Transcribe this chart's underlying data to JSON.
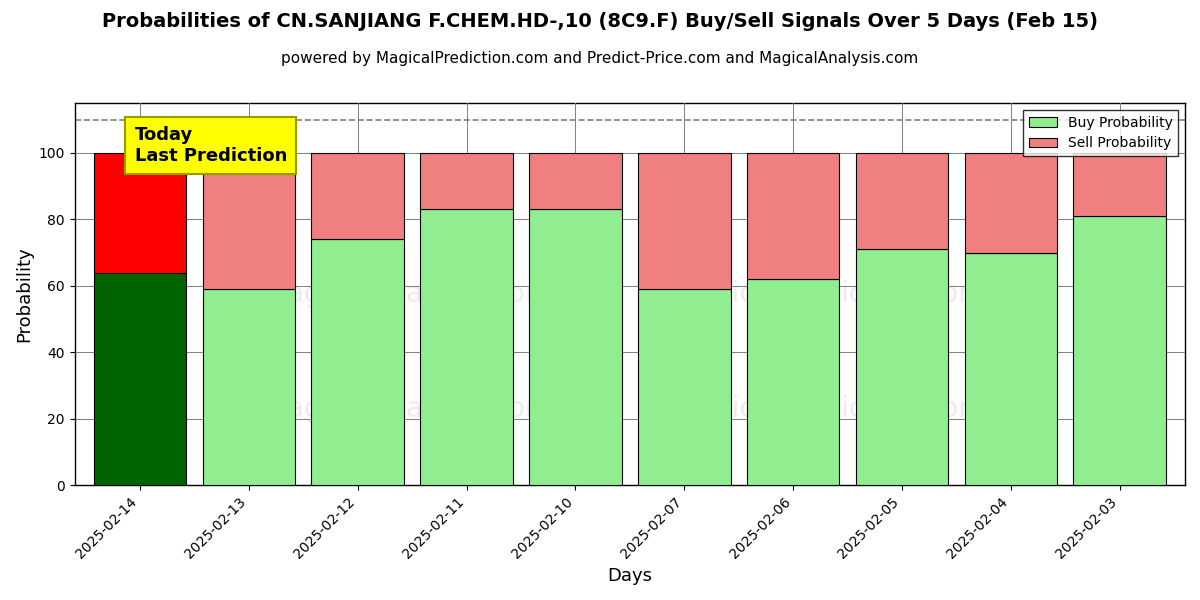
{
  "title": "Probabilities of CN.SANJIANG F.CHEM.HD-,10 (8C9.F) Buy/Sell Signals Over 5 Days (Feb 15)",
  "subtitle": "powered by MagicalPrediction.com and Predict-Price.com and MagicalAnalysis.com",
  "xlabel": "Days",
  "ylabel": "Probability",
  "categories": [
    "2025-02-14",
    "2025-02-13",
    "2025-02-12",
    "2025-02-11",
    "2025-02-10",
    "2025-02-07",
    "2025-02-06",
    "2025-02-05",
    "2025-02-04",
    "2025-02-03"
  ],
  "buy_values": [
    64,
    59,
    74,
    83,
    83,
    59,
    62,
    71,
    70,
    81
  ],
  "sell_values": [
    36,
    41,
    26,
    17,
    17,
    41,
    38,
    29,
    30,
    19
  ],
  "today_buy_color": "#006400",
  "today_sell_color": "#FF0000",
  "buy_color": "#90EE90",
  "sell_color": "#F08080",
  "today_annotation": "Today\nLast Prediction",
  "ylim_max": 115,
  "dashed_line_y": 110,
  "yticks": [
    0,
    20,
    40,
    60,
    80,
    100
  ],
  "legend_buy_label": "Buy Probability",
  "legend_sell_label": "Sell Probability",
  "background_color": "#ffffff",
  "title_fontsize": 14,
  "subtitle_fontsize": 11,
  "axis_label_fontsize": 13,
  "tick_fontsize": 10,
  "legend_fontsize": 10,
  "bar_width": 0.85
}
